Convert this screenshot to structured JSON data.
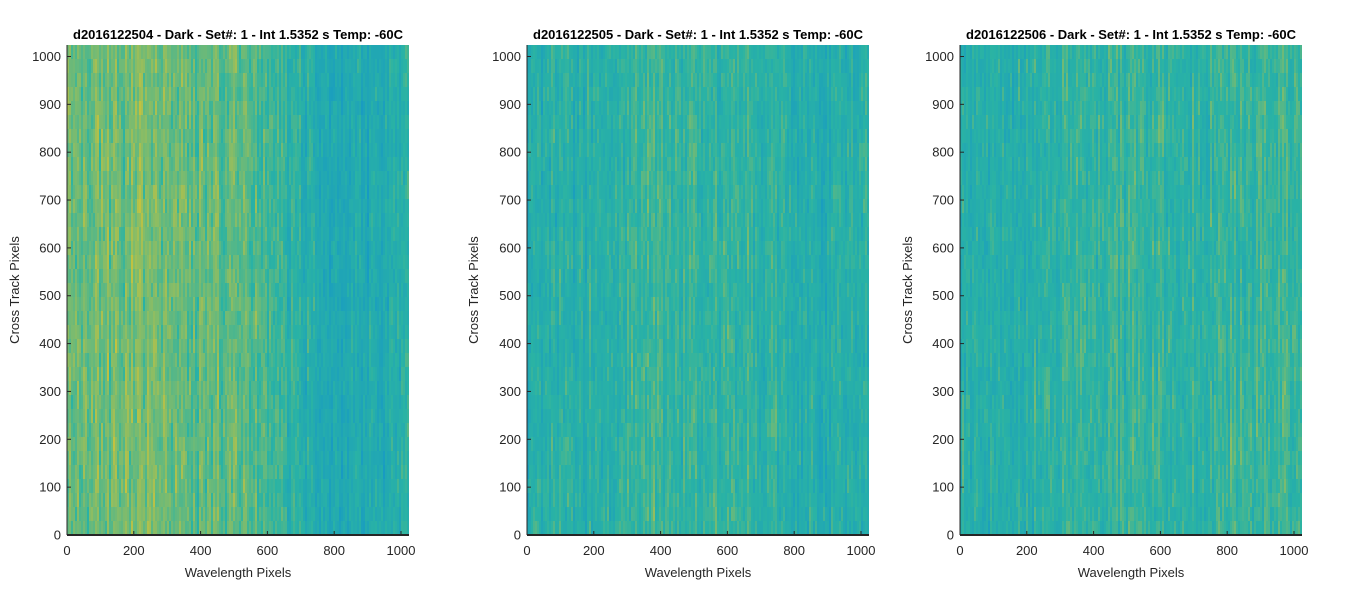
{
  "figure": {
    "colormap": "parula",
    "colors": {
      "low": "#1597c8",
      "mid": "#2ab3a4",
      "high": "#c2c240",
      "axis": "#262626",
      "title": "#000000",
      "background": "#ffffff"
    }
  },
  "chart_data": [
    {
      "type": "heatmap",
      "title": "d2016122504 - Dark - Set#: 1 - Int 1.5352 s Temp: -60C",
      "xlabel": "Wavelength Pixels",
      "ylabel": "Cross Track Pixels",
      "xlim": [
        0,
        1024
      ],
      "ylim": [
        0,
        1024
      ],
      "x_ticks": [
        0,
        200,
        400,
        600,
        800,
        1000
      ],
      "y_ticks": [
        0,
        100,
        200,
        300,
        400,
        500,
        600,
        700,
        800,
        900,
        1000
      ],
      "x_tick_labels": [
        "0",
        "200",
        "400",
        "600",
        "800",
        "1000"
      ],
      "y_tick_labels": [
        "0",
        "100",
        "200",
        "300",
        "400",
        "500",
        "600",
        "700",
        "800",
        "900",
        "1000"
      ],
      "column_trend": [
        {
          "x": 0,
          "level": 0.72
        },
        {
          "x": 200,
          "level": 0.74
        },
        {
          "x": 400,
          "level": 0.66
        },
        {
          "x": 500,
          "level": 0.72
        },
        {
          "x": 600,
          "level": 0.58
        },
        {
          "x": 700,
          "level": 0.42
        },
        {
          "x": 800,
          "level": 0.3
        },
        {
          "x": 900,
          "level": 0.32
        },
        {
          "x": 1024,
          "level": 0.45
        }
      ],
      "grid": false
    },
    {
      "type": "heatmap",
      "title": "d2016122505 - Dark - Set#: 1 - Int 1.5352 s Temp: -60C",
      "xlabel": "Wavelength Pixels",
      "ylabel": "Cross Track Pixels",
      "xlim": [
        0,
        1024
      ],
      "ylim": [
        0,
        1024
      ],
      "x_ticks": [
        0,
        200,
        400,
        600,
        800,
        1000
      ],
      "y_ticks": [
        0,
        100,
        200,
        300,
        400,
        500,
        600,
        700,
        800,
        900,
        1000
      ],
      "x_tick_labels": [
        "0",
        "200",
        "400",
        "600",
        "800",
        "1000"
      ],
      "y_tick_labels": [
        "0",
        "100",
        "200",
        "300",
        "400",
        "500",
        "600",
        "700",
        "800",
        "900",
        "1000"
      ],
      "column_trend": [
        {
          "x": 0,
          "level": 0.4
        },
        {
          "x": 200,
          "level": 0.44
        },
        {
          "x": 350,
          "level": 0.56
        },
        {
          "x": 500,
          "level": 0.5
        },
        {
          "x": 650,
          "level": 0.5
        },
        {
          "x": 800,
          "level": 0.42
        },
        {
          "x": 900,
          "level": 0.38
        },
        {
          "x": 1024,
          "level": 0.5
        }
      ],
      "grid": false
    },
    {
      "type": "heatmap",
      "title": "d2016122506 - Dark - Set#: 1 - Int 1.5352 s Temp: -60C",
      "xlabel": "Wavelength Pixels",
      "ylabel": "Cross Track Pixels",
      "xlim": [
        0,
        1024
      ],
      "ylim": [
        0,
        1024
      ],
      "x_ticks": [
        0,
        200,
        400,
        600,
        800,
        1000
      ],
      "y_ticks": [
        0,
        100,
        200,
        300,
        400,
        500,
        600,
        700,
        800,
        900,
        1000
      ],
      "x_tick_labels": [
        "0",
        "200",
        "400",
        "600",
        "800",
        "1000"
      ],
      "y_tick_labels": [
        "0",
        "100",
        "200",
        "300",
        "400",
        "500",
        "600",
        "700",
        "800",
        "900",
        "1000"
      ],
      "column_trend": [
        {
          "x": 0,
          "level": 0.4
        },
        {
          "x": 200,
          "level": 0.46
        },
        {
          "x": 400,
          "level": 0.5
        },
        {
          "x": 600,
          "level": 0.52
        },
        {
          "x": 800,
          "level": 0.5
        },
        {
          "x": 1024,
          "level": 0.58
        }
      ],
      "grid": false
    }
  ]
}
